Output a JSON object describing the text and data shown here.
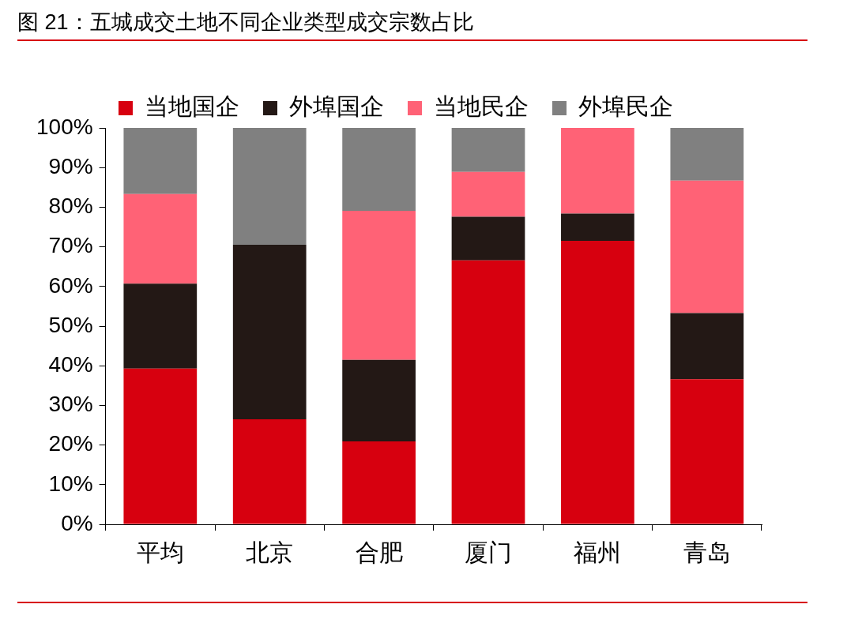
{
  "chart_data": {
    "type": "bar",
    "stacked": true,
    "title": "图 21：五城成交土地不同企业类型成交宗数占比",
    "categories": [
      "平均",
      "北京",
      "合肥",
      "厦门",
      "福州",
      "青岛"
    ],
    "series": [
      {
        "name": "当地国企",
        "color": "#d7000f",
        "values": [
          39.3,
          26.5,
          20.9,
          66.6,
          71.5,
          36.6
        ]
      },
      {
        "name": "外埠国企",
        "color": "#231815",
        "values": [
          21.4,
          44,
          20.6,
          11,
          6.9,
          16.7
        ]
      },
      {
        "name": "当地民企",
        "color": "#ff6276",
        "values": [
          22.6,
          0,
          37.6,
          11.3,
          21.6,
          33.4
        ]
      },
      {
        "name": "外埠民企",
        "color": "#808080",
        "values": [
          16.7,
          29.5,
          20.9,
          11.1,
          0,
          13.3
        ]
      }
    ],
    "ylim": [
      0,
      100
    ],
    "yticks": [
      {
        "value": 0,
        "label": "0%"
      },
      {
        "value": 10,
        "label": "10%"
      },
      {
        "value": 20,
        "label": "20%"
      },
      {
        "value": 30,
        "label": "30%"
      },
      {
        "value": 40,
        "label": "40%"
      },
      {
        "value": 50,
        "label": "50%"
      },
      {
        "value": 60,
        "label": "60%"
      },
      {
        "value": 70,
        "label": "70%"
      },
      {
        "value": 80,
        "label": "80%"
      },
      {
        "value": 90,
        "label": "90%"
      },
      {
        "value": 100,
        "label": "100%"
      }
    ],
    "grid": false,
    "legend": "top"
  }
}
